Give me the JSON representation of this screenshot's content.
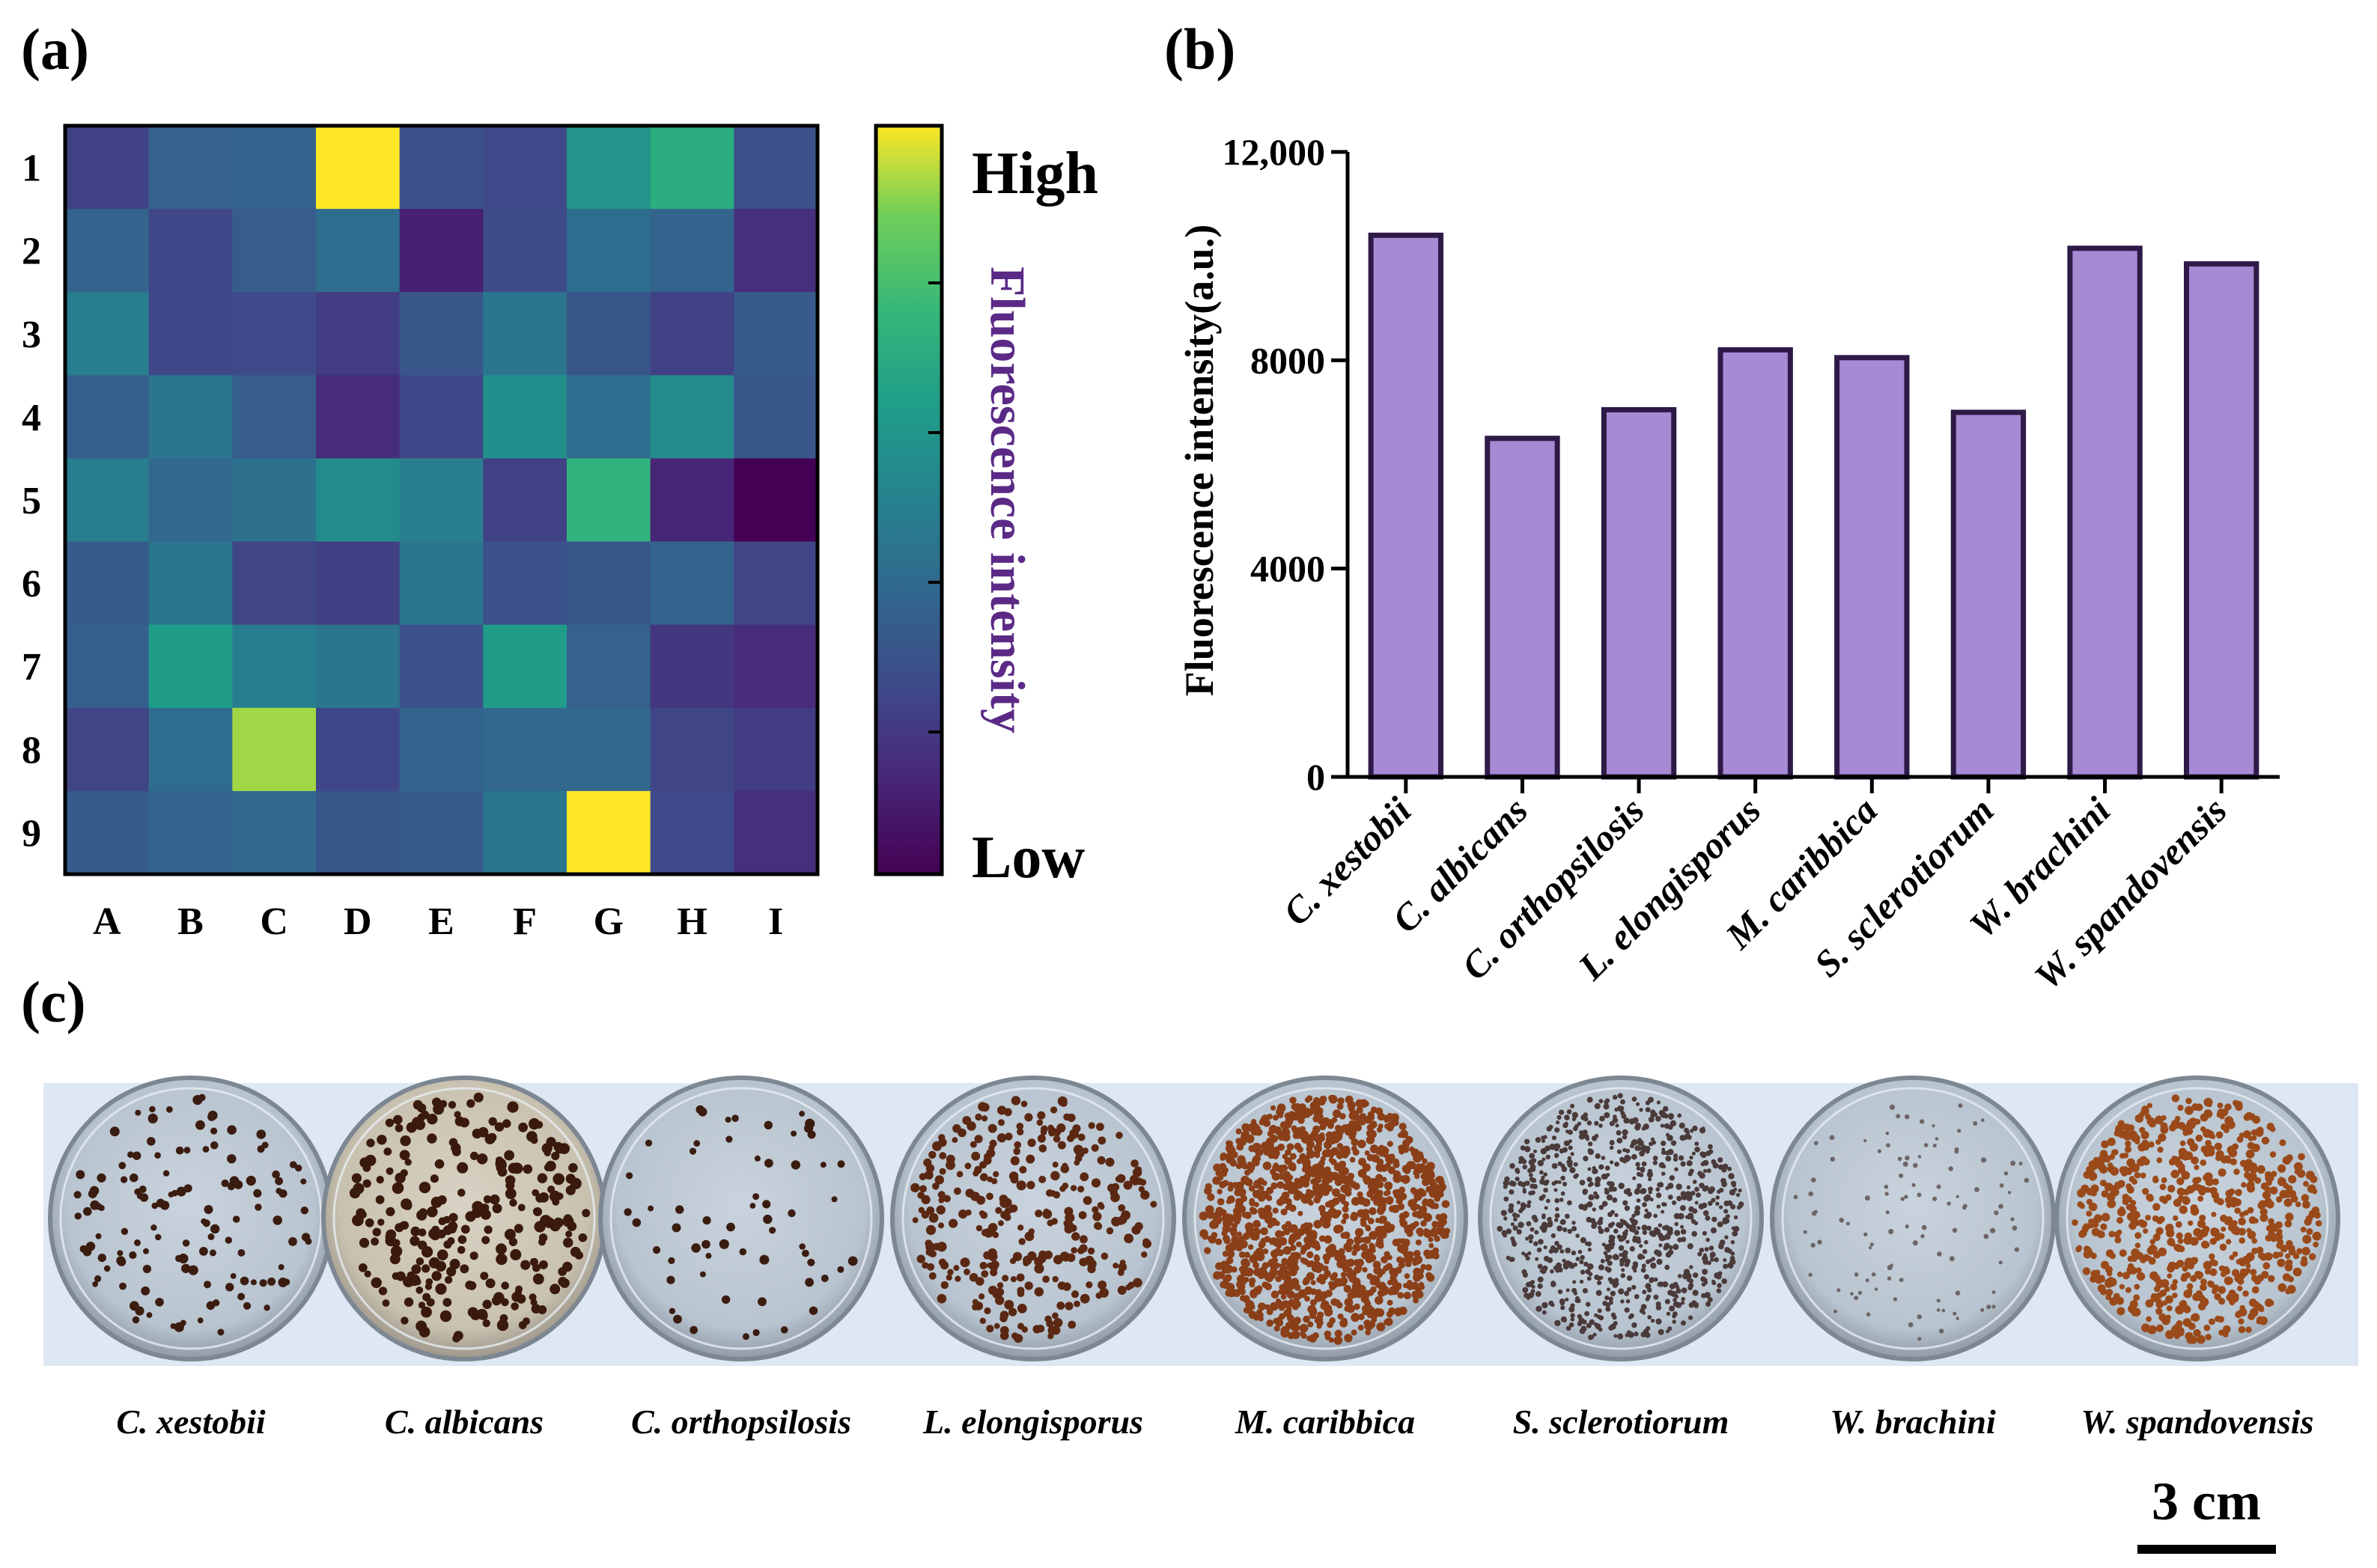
{
  "panels": {
    "a": {
      "label": "(a)"
    },
    "b": {
      "label": "(b)"
    },
    "c": {
      "label": "(c)"
    }
  },
  "colorbar": {
    "high_label": "High",
    "low_label": "Low",
    "title": "Fluorescence intensity",
    "title_color": "#5b2a86"
  },
  "scale_bar": {
    "label": "3 cm"
  },
  "chart_data": [
    {
      "type": "heatmap",
      "title": "",
      "x_categories": [
        "A",
        "B",
        "C",
        "D",
        "E",
        "F",
        "G",
        "H",
        "I"
      ],
      "y_categories": [
        "1",
        "2",
        "3",
        "4",
        "5",
        "6",
        "7",
        "8",
        "9"
      ],
      "colormap": "viridis",
      "value_range": [
        0,
        1
      ],
      "values": [
        [
          0.22,
          0.35,
          0.36,
          1.0,
          0.28,
          0.25,
          0.58,
          0.7,
          0.28
        ],
        [
          0.36,
          0.24,
          0.33,
          0.4,
          0.1,
          0.26,
          0.4,
          0.36,
          0.15
        ],
        [
          0.48,
          0.24,
          0.25,
          0.2,
          0.3,
          0.44,
          0.3,
          0.22,
          0.32
        ],
        [
          0.34,
          0.44,
          0.33,
          0.14,
          0.24,
          0.56,
          0.4,
          0.54,
          0.3
        ],
        [
          0.48,
          0.38,
          0.42,
          0.54,
          0.48,
          0.22,
          0.72,
          0.12,
          0.0
        ],
        [
          0.32,
          0.44,
          0.23,
          0.21,
          0.44,
          0.28,
          0.3,
          0.36,
          0.23
        ],
        [
          0.34,
          0.62,
          0.48,
          0.44,
          0.28,
          0.62,
          0.35,
          0.18,
          0.14
        ],
        [
          0.23,
          0.4,
          0.92,
          0.24,
          0.36,
          0.37,
          0.37,
          0.23,
          0.2
        ],
        [
          0.32,
          0.36,
          0.38,
          0.3,
          0.32,
          0.44,
          1.0,
          0.25,
          0.15
        ]
      ],
      "colorbar_labels": [
        "High",
        "Low"
      ]
    },
    {
      "type": "bar",
      "title": "",
      "categories": [
        "C. xestobii",
        "C. albicans",
        "C. orthopsilosis",
        "L. elongisporus",
        "M. caribbica",
        "S. sclerotiorum",
        "W. brachini",
        "W. spandovensis"
      ],
      "values": [
        10400,
        6500,
        7050,
        8200,
        8050,
        7000,
        10150,
        9850
      ],
      "xlabel": "",
      "ylabel": "Fluorescence intensity(a.u.)",
      "ylim": [
        0,
        12000
      ],
      "yticks": [
        0,
        4000,
        8000,
        12000
      ],
      "ytick_labels": [
        "0",
        "4000",
        "8000",
        "12,000"
      ],
      "bar_fill": "#a68ad4",
      "bar_edge": "#2e1a47"
    },
    {
      "type": "image-grid",
      "title": "",
      "captions": [
        "C. xestobii",
        "C. albicans",
        "C. orthopsilosis",
        "L. elongisporus",
        "M. caribbica",
        "S. sclerotiorum",
        "W. brachini",
        "W. spandovensis"
      ],
      "background": "#dde8f4"
    }
  ]
}
